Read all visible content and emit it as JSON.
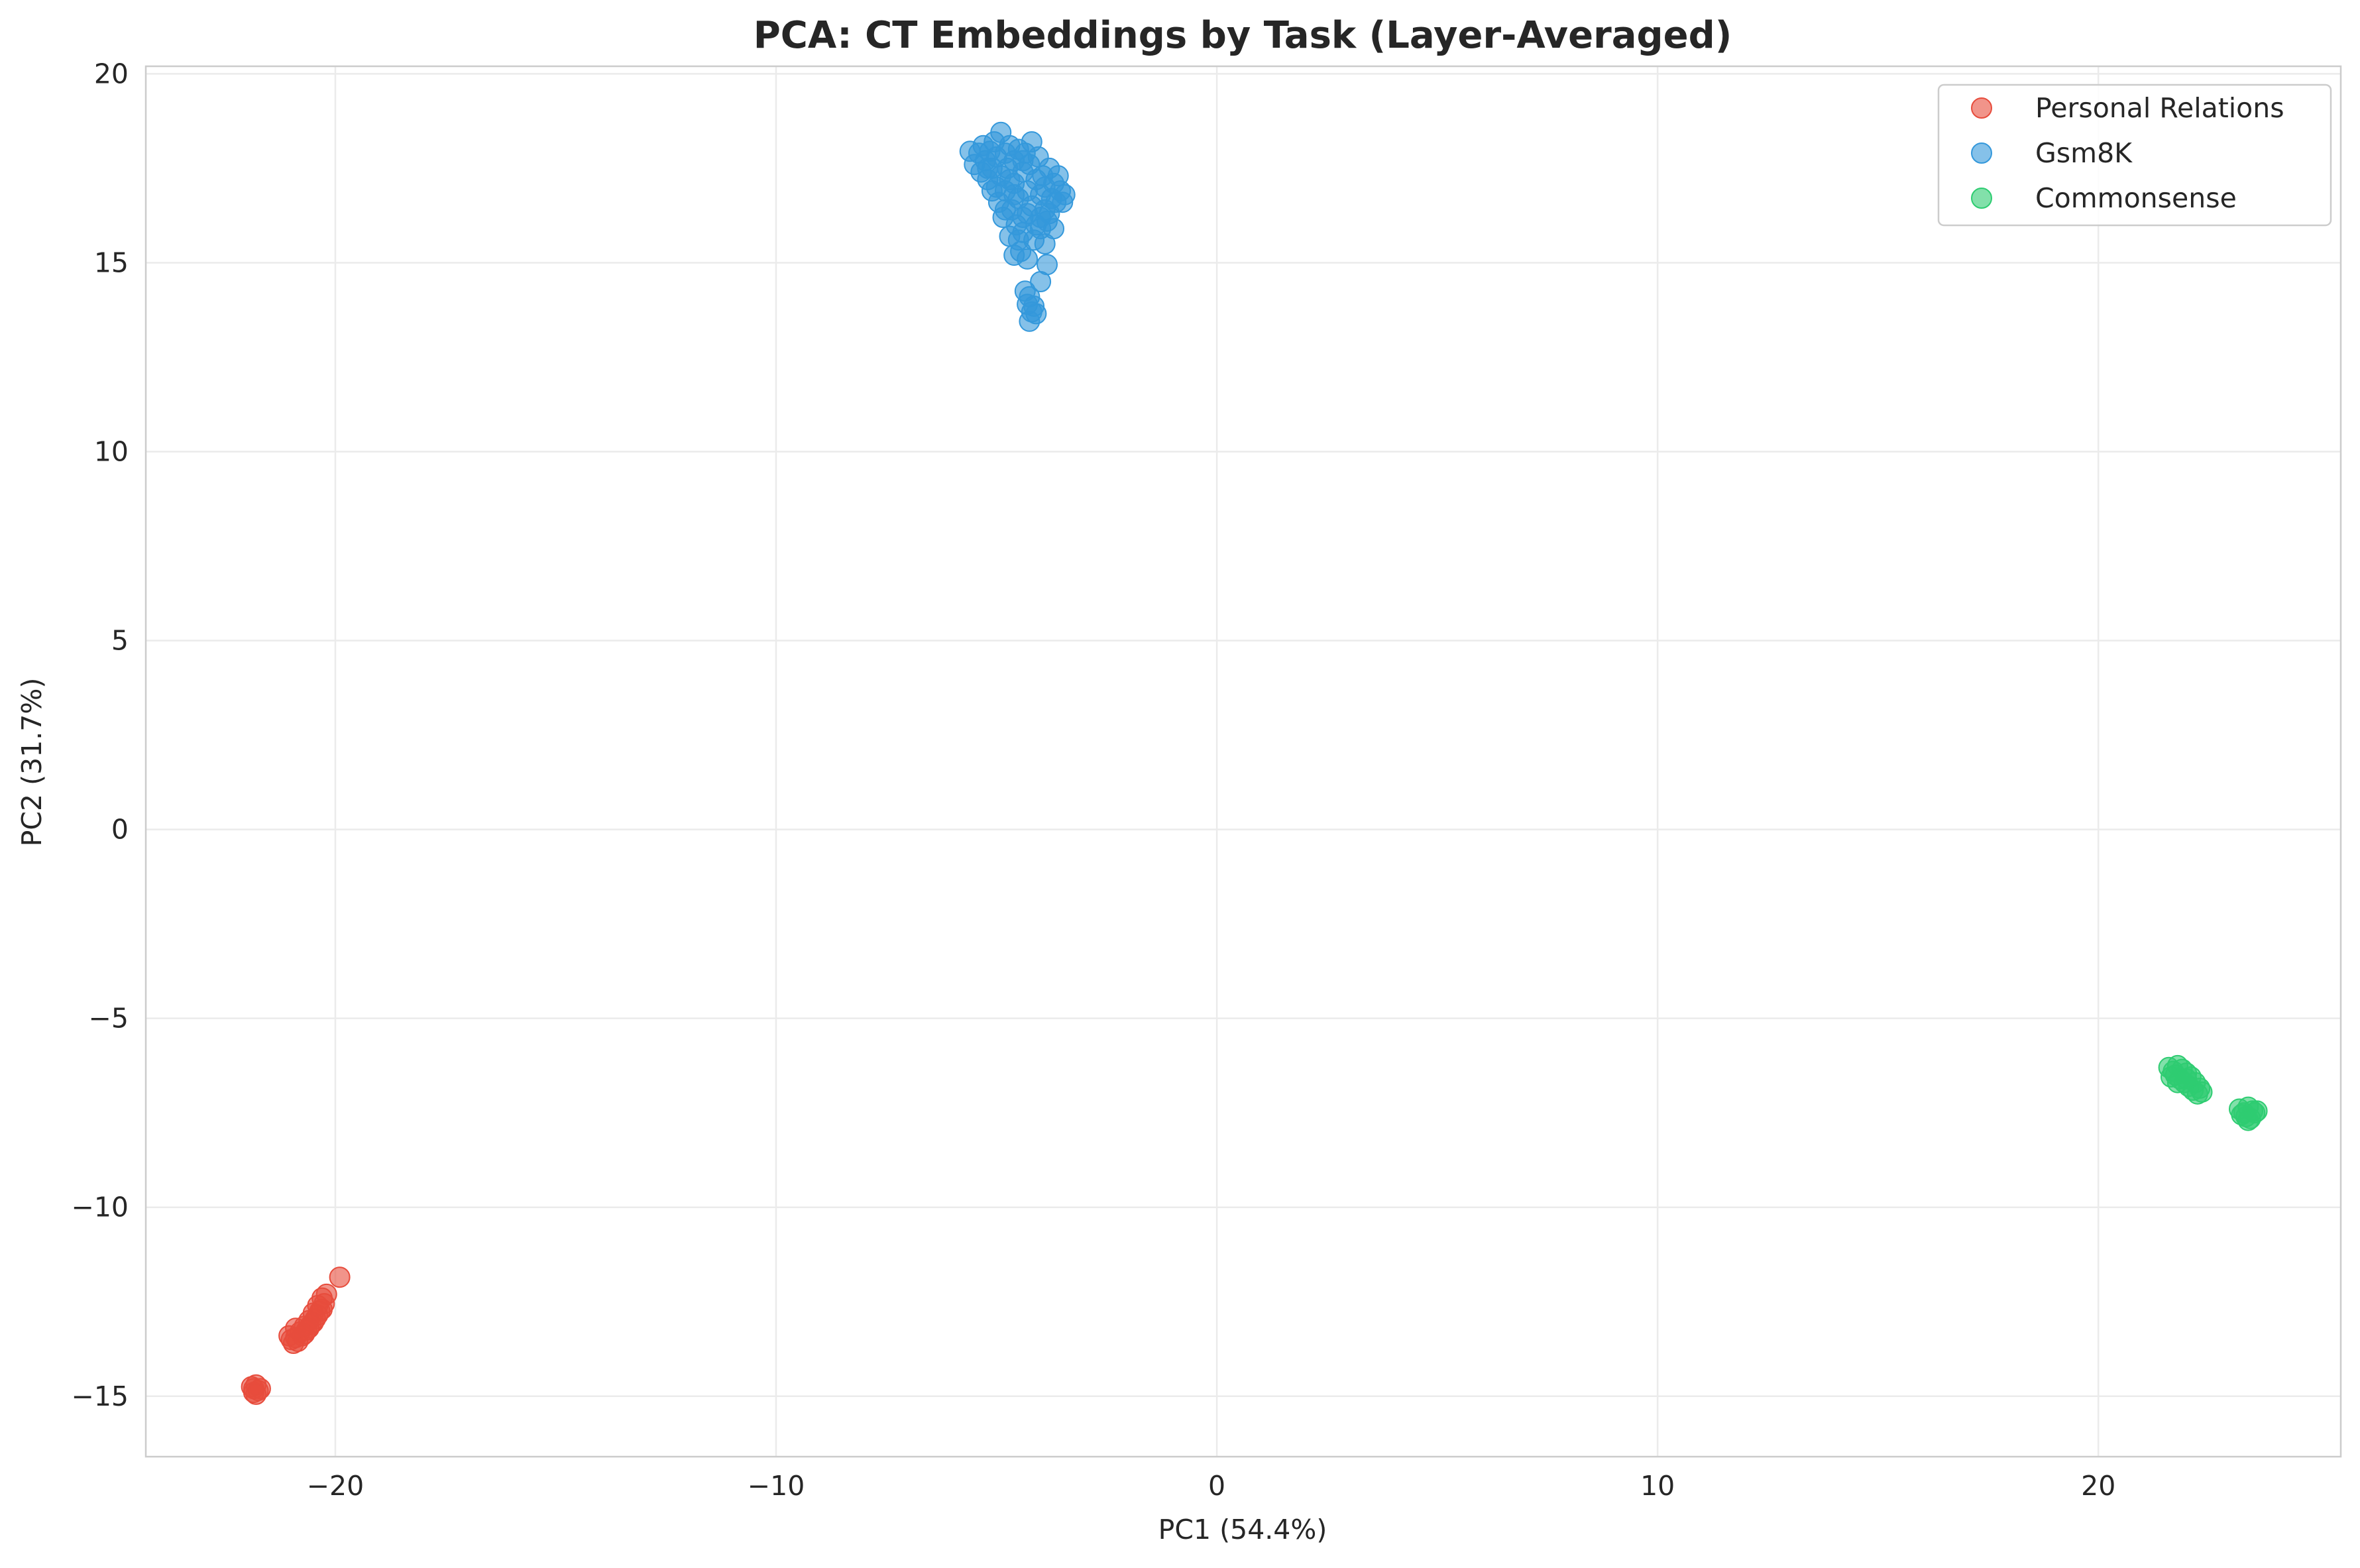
{
  "chart_data": {
    "type": "scatter",
    "title": "PCA: CT Embeddings by Task (Layer-Averaged)",
    "xlabel": "PC1 (54.4%)",
    "ylabel": "PC2 (31.7%)",
    "xlim": [
      -24.3,
      25.5
    ],
    "ylim": [
      -16.6,
      20.2
    ],
    "xticks": [
      -20,
      -10,
      0,
      10,
      20
    ],
    "xtick_labels": [
      "−20",
      "−10",
      "0",
      "10",
      "20"
    ],
    "yticks": [
      -15,
      -10,
      -5,
      0,
      5,
      10,
      15,
      20
    ],
    "ytick_labels": [
      "−15",
      "−10",
      "−5",
      "0",
      "5",
      "10",
      "15",
      "20"
    ],
    "grid": true,
    "legend_position": "top-right",
    "marker_alpha": 0.6,
    "series": [
      {
        "name": "Personal Relations",
        "color": "#e74c3c",
        "points": [
          [
            -19.9,
            -11.85
          ],
          [
            -20.2,
            -12.3
          ],
          [
            -20.3,
            -12.4
          ],
          [
            -20.25,
            -12.55
          ],
          [
            -20.4,
            -12.6
          ],
          [
            -20.35,
            -12.75
          ],
          [
            -20.5,
            -12.8
          ],
          [
            -20.45,
            -12.95
          ],
          [
            -20.6,
            -13.0
          ],
          [
            -20.55,
            -13.1
          ],
          [
            -20.7,
            -13.15
          ],
          [
            -20.65,
            -13.25
          ],
          [
            -20.8,
            -13.3
          ],
          [
            -20.75,
            -13.4
          ],
          [
            -20.9,
            -13.45
          ],
          [
            -21.0,
            -13.5
          ],
          [
            -20.85,
            -13.55
          ],
          [
            -20.95,
            -13.6
          ],
          [
            -20.6,
            -13.2
          ],
          [
            -20.5,
            -13.05
          ],
          [
            -20.4,
            -12.85
          ],
          [
            -20.3,
            -12.7
          ],
          [
            -20.7,
            -13.35
          ],
          [
            -20.9,
            -13.2
          ],
          [
            -21.05,
            -13.4
          ],
          [
            -21.8,
            -14.7
          ],
          [
            -21.85,
            -14.8
          ],
          [
            -21.75,
            -14.85
          ],
          [
            -21.8,
            -14.95
          ],
          [
            -21.9,
            -14.75
          ],
          [
            -21.7,
            -14.8
          ],
          [
            -21.85,
            -14.9
          ]
        ]
      },
      {
        "name": "Gsm8K",
        "color": "#3498db",
        "points": [
          [
            -5.6,
            17.95
          ],
          [
            -5.5,
            17.6
          ],
          [
            -5.4,
            17.9
          ],
          [
            -5.35,
            17.4
          ],
          [
            -5.3,
            18.1
          ],
          [
            -5.25,
            17.7
          ],
          [
            -5.2,
            17.2
          ],
          [
            -5.15,
            17.95
          ],
          [
            -5.1,
            17.5
          ],
          [
            -5.05,
            18.2
          ],
          [
            -5.0,
            17.0
          ],
          [
            -5.0,
            17.8
          ],
          [
            -4.95,
            16.6
          ],
          [
            -4.9,
            18.45
          ],
          [
            -4.9,
            17.3
          ],
          [
            -4.85,
            16.2
          ],
          [
            -4.8,
            17.9
          ],
          [
            -4.8,
            16.9
          ],
          [
            -4.75,
            17.5
          ],
          [
            -4.7,
            15.7
          ],
          [
            -4.7,
            18.1
          ],
          [
            -4.65,
            16.4
          ],
          [
            -4.6,
            17.1
          ],
          [
            -4.6,
            17.7
          ],
          [
            -4.55,
            16.0
          ],
          [
            -4.5,
            18.0
          ],
          [
            -4.5,
            16.7
          ],
          [
            -4.45,
            15.3
          ],
          [
            -4.4,
            17.4
          ],
          [
            -4.4,
            16.2
          ],
          [
            -4.35,
            17.9
          ],
          [
            -4.3,
            15.1
          ],
          [
            -4.3,
            16.9
          ],
          [
            -4.25,
            17.6
          ],
          [
            -4.2,
            16.5
          ],
          [
            -4.2,
            18.2
          ],
          [
            -4.15,
            15.6
          ],
          [
            -4.1,
            17.2
          ],
          [
            -4.1,
            16.0
          ],
          [
            -4.05,
            17.8
          ],
          [
            -4.0,
            16.8
          ],
          [
            -4.0,
            15.9
          ],
          [
            -3.95,
            17.3
          ],
          [
            -3.9,
            16.4
          ],
          [
            -3.9,
            17.0
          ],
          [
            -3.85,
            16.1
          ],
          [
            -3.8,
            17.5
          ],
          [
            -3.75,
            16.7
          ],
          [
            -3.7,
            17.1
          ],
          [
            -3.65,
            16.6
          ],
          [
            -3.6,
            17.3
          ],
          [
            -3.55,
            16.9
          ],
          [
            -3.5,
            16.6
          ],
          [
            -3.45,
            16.8
          ],
          [
            -3.7,
            15.9
          ],
          [
            -3.9,
            15.5
          ],
          [
            -4.5,
            15.6
          ],
          [
            -4.6,
            15.2
          ],
          [
            -4.4,
            15.8
          ],
          [
            -4.8,
            16.4
          ],
          [
            -5.1,
            16.9
          ],
          [
            -4.3,
            16.3
          ],
          [
            -4.0,
            16.2
          ],
          [
            -4.6,
            16.8
          ],
          [
            -4.7,
            17.2
          ],
          [
            -4.4,
            17.7
          ],
          [
            -5.2,
            17.5
          ],
          [
            -3.8,
            16.3
          ],
          [
            -3.85,
            14.95
          ],
          [
            -4.0,
            14.5
          ],
          [
            -4.35,
            14.25
          ],
          [
            -4.25,
            14.1
          ],
          [
            -4.3,
            13.9
          ],
          [
            -4.15,
            13.85
          ],
          [
            -4.2,
            13.7
          ],
          [
            -4.1,
            13.65
          ],
          [
            -4.25,
            13.45
          ]
        ]
      },
      {
        "name": "Commonsense",
        "color": "#2ecc71",
        "points": [
          [
            21.6,
            -6.3
          ],
          [
            21.7,
            -6.4
          ],
          [
            21.8,
            -6.25
          ],
          [
            21.75,
            -6.5
          ],
          [
            21.9,
            -6.35
          ],
          [
            21.85,
            -6.6
          ],
          [
            22.0,
            -6.45
          ],
          [
            21.95,
            -6.7
          ],
          [
            22.1,
            -6.55
          ],
          [
            22.05,
            -6.8
          ],
          [
            22.2,
            -6.7
          ],
          [
            22.15,
            -6.9
          ],
          [
            22.3,
            -6.85
          ],
          [
            22.25,
            -7.0
          ],
          [
            22.35,
            -6.95
          ],
          [
            21.65,
            -6.55
          ],
          [
            21.8,
            -6.7
          ],
          [
            22.0,
            -6.6
          ],
          [
            23.2,
            -7.4
          ],
          [
            23.3,
            -7.5
          ],
          [
            23.4,
            -7.35
          ],
          [
            23.35,
            -7.6
          ],
          [
            23.5,
            -7.45
          ],
          [
            23.45,
            -7.65
          ],
          [
            23.55,
            -7.5
          ],
          [
            23.25,
            -7.55
          ],
          [
            23.4,
            -7.7
          ],
          [
            23.6,
            -7.45
          ]
        ]
      }
    ]
  }
}
